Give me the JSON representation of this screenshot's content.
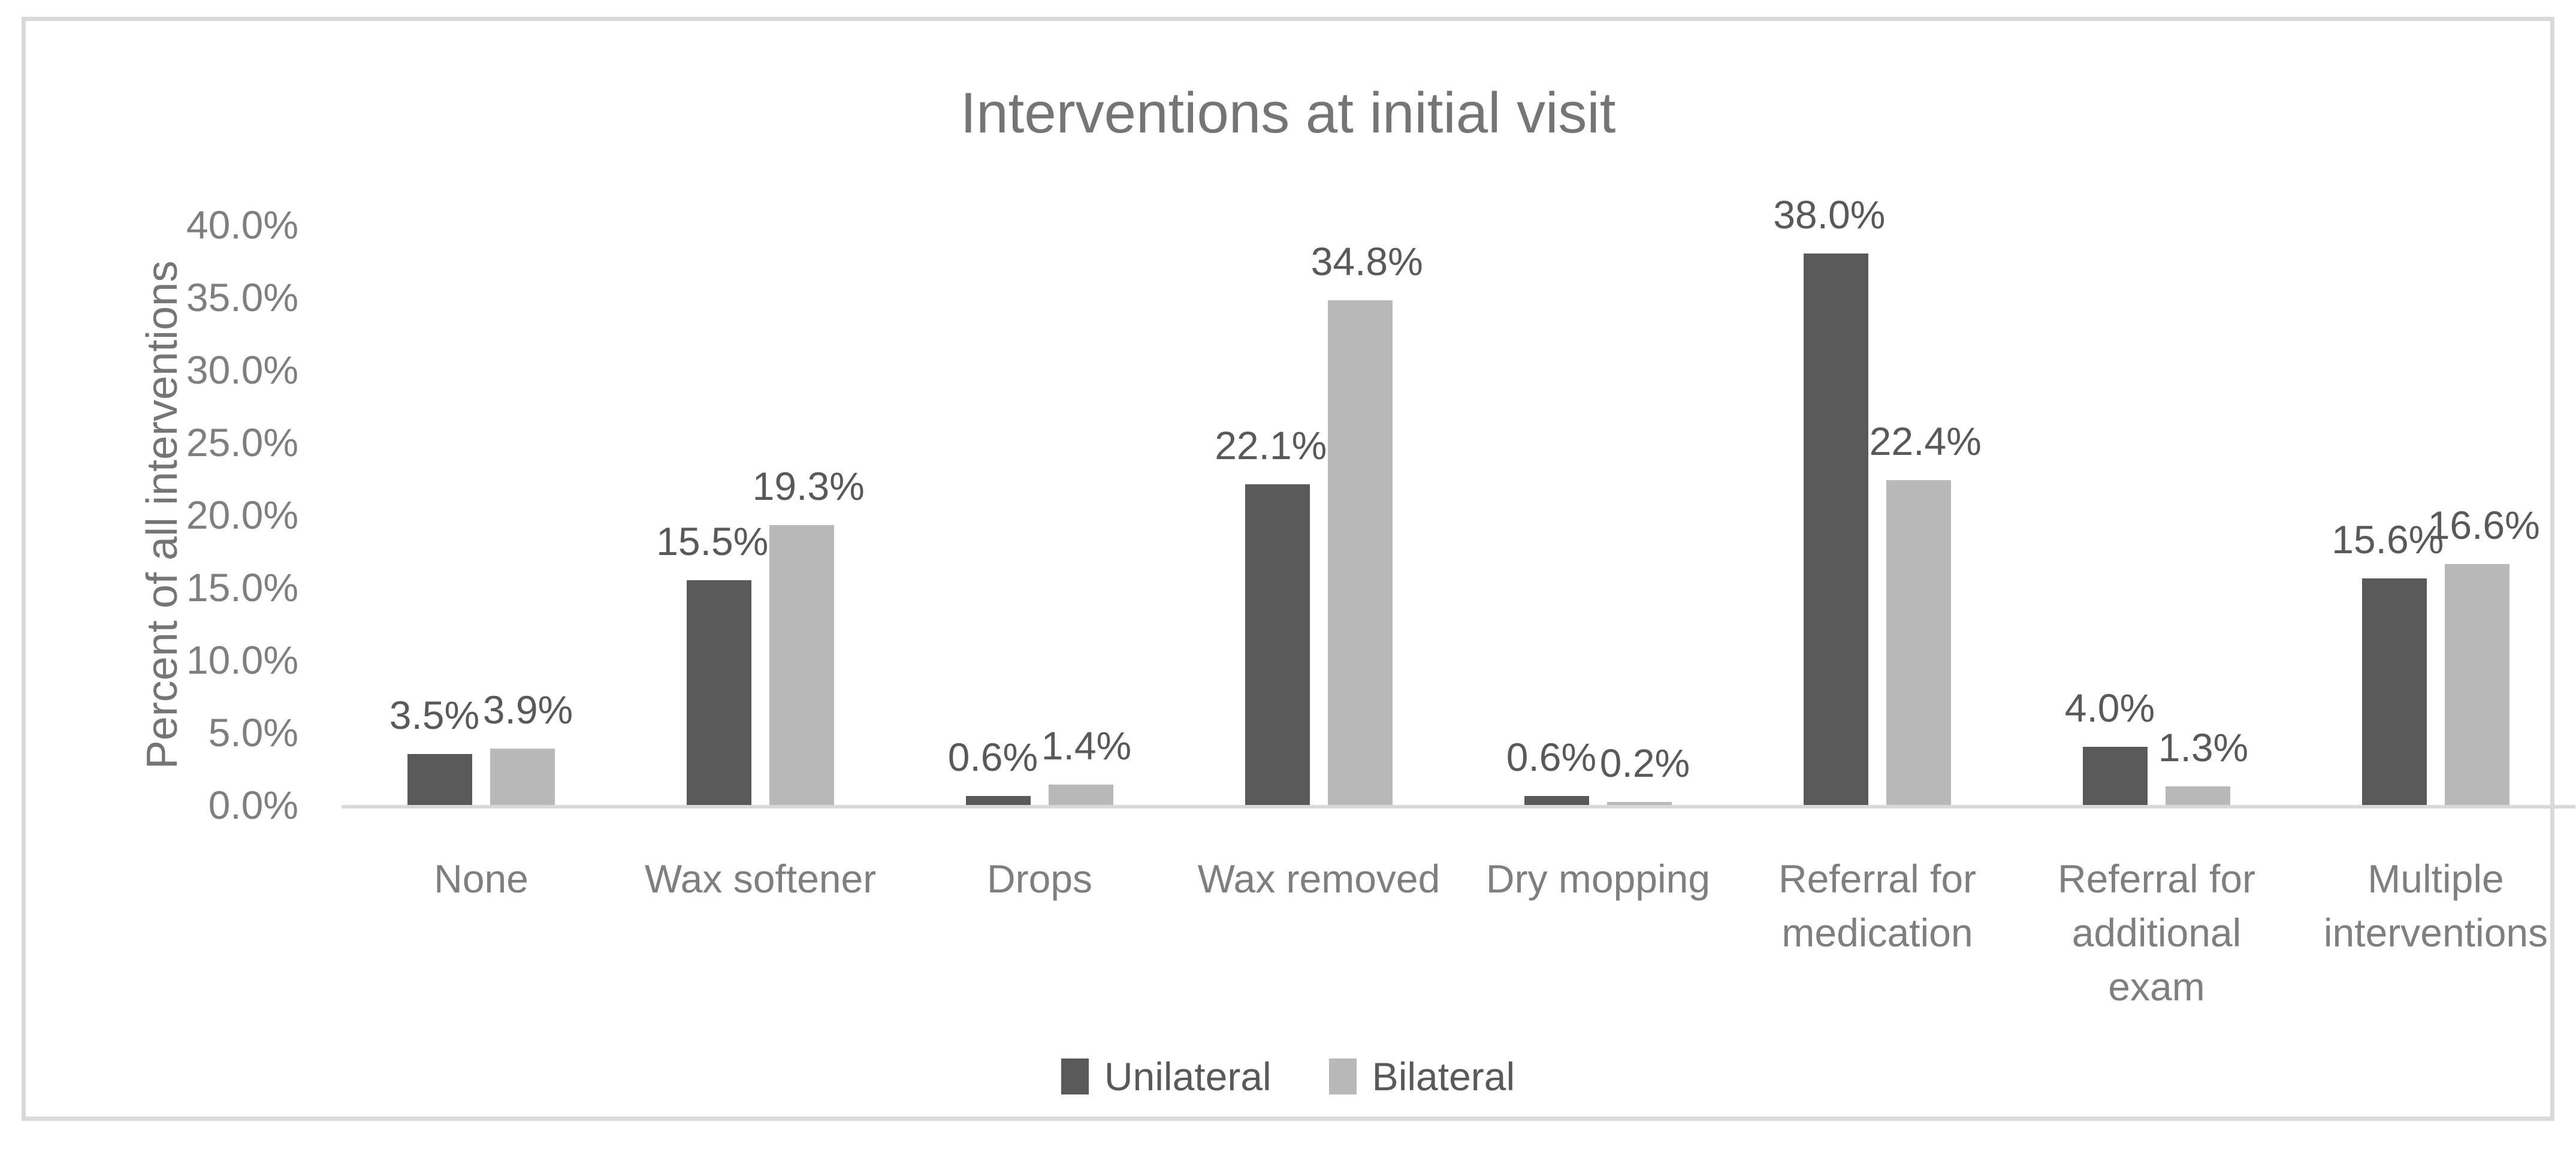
{
  "chart_data": {
    "type": "bar",
    "title": "Interventions at initial visit",
    "ylabel": "Percent of all interventions",
    "xlabel": "",
    "categories": [
      "None",
      "Wax softener",
      "Drops",
      "Wax removed",
      "Dry mopping",
      "Referral for medication",
      "Referral for additional exam",
      "Multiple interventions"
    ],
    "series": [
      {
        "name": "Unilateral",
        "color": "#595959",
        "values": [
          3.5,
          15.5,
          0.6,
          22.1,
          0.6,
          38.0,
          4.0,
          15.6
        ],
        "labels": [
          "3.5%",
          "15.5%",
          "0.6%",
          "22.1%",
          "0.6%",
          "38.0%",
          "4.0%",
          "15.6%"
        ]
      },
      {
        "name": "Bilateral",
        "color": "#b9b9b9",
        "values": [
          3.9,
          19.3,
          1.4,
          34.8,
          0.2,
          22.4,
          1.3,
          16.6
        ],
        "labels": [
          "3.9%",
          "19.3%",
          "1.4%",
          "34.8%",
          "0.2%",
          "22.4%",
          "1.3%",
          "16.6%"
        ]
      }
    ],
    "y_ticks": [
      "40.0%",
      "35.0%",
      "30.0%",
      "25.0%",
      "20.0%",
      "15.0%",
      "10.0%",
      "5.0%",
      "0.0%"
    ],
    "ylim": [
      0,
      40
    ],
    "grid": false,
    "legend_position": "bottom",
    "colors": {
      "axis_line": "#d9d9d9",
      "frame_border": "#d9d9d9",
      "tick_text": "#7f7f7f",
      "title_text": "#757575",
      "data_label_text": "#595959"
    }
  }
}
